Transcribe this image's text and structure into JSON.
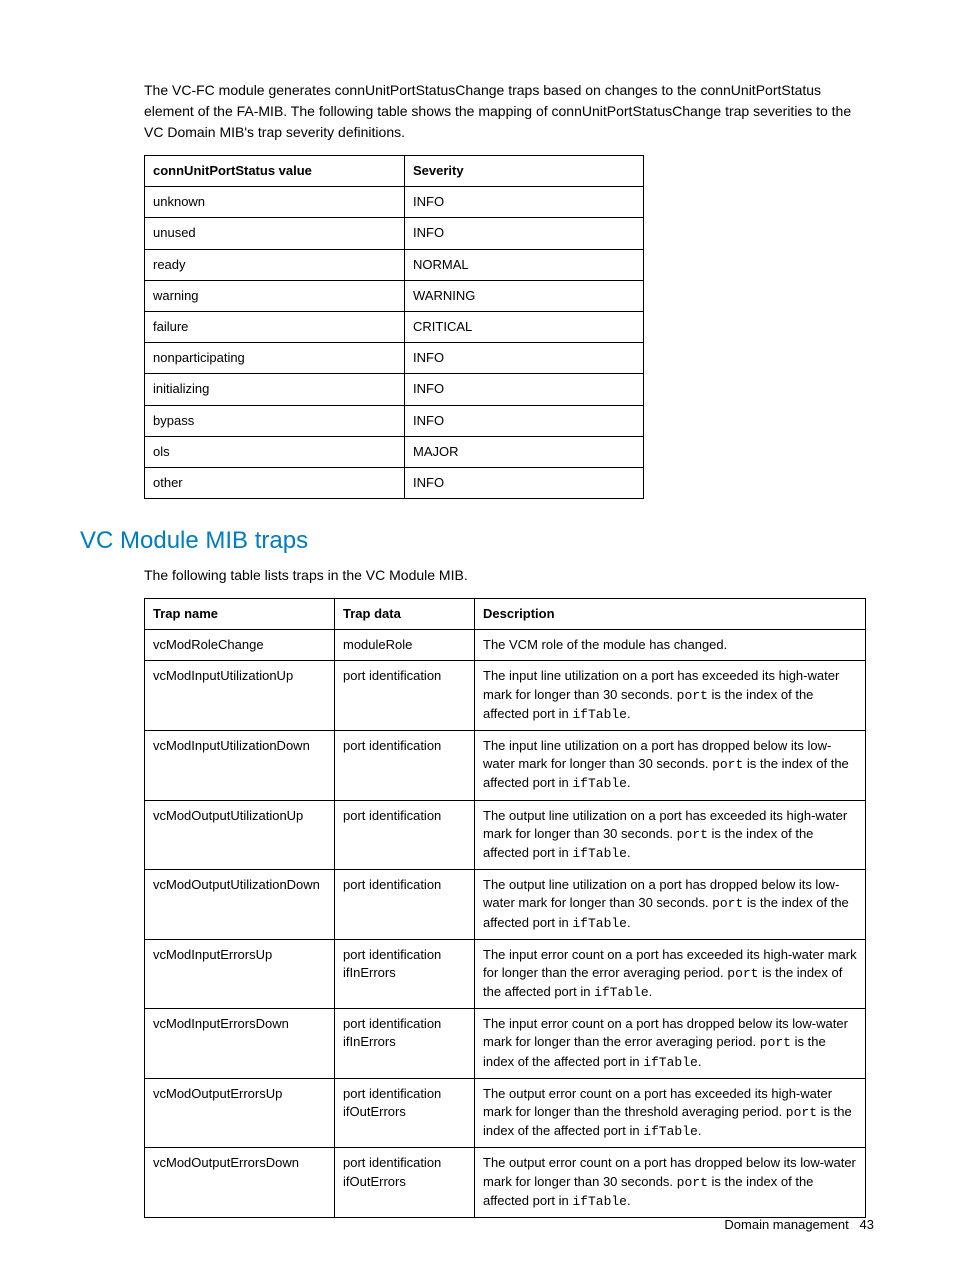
{
  "intro": "The VC-FC module generates connUnitPortStatusChange traps based on changes to the connUnitPortStatus element of the FA-MIB. The following table shows the mapping of connUnitPortStatusChange trap severities to the VC Domain MIB's trap severity definitions.",
  "severity_table": {
    "columns": [
      "connUnitPortStatus value",
      "Severity"
    ],
    "rows": [
      [
        "unknown",
        "INFO"
      ],
      [
        "unused",
        "INFO"
      ],
      [
        "ready",
        "NORMAL"
      ],
      [
        "warning",
        "WARNING"
      ],
      [
        "failure",
        "CRITICAL"
      ],
      [
        "nonparticipating",
        "INFO"
      ],
      [
        "initializing",
        "INFO"
      ],
      [
        "bypass",
        "INFO"
      ],
      [
        "ols",
        "MAJOR"
      ],
      [
        "other",
        "INFO"
      ]
    ]
  },
  "section_heading": "VC Module MIB traps",
  "subintro": "The following table lists traps in the VC Module MIB.",
  "traps_table": {
    "columns": [
      "Trap name",
      "Trap data",
      "Description"
    ],
    "rows": [
      {
        "name": "vcModRoleChange",
        "data": "moduleRole",
        "desc_parts": [
          {
            "t": "The VCM role of the module has changed."
          }
        ]
      },
      {
        "name": "vcModInputUtilizationUp",
        "data": "port identification",
        "desc_parts": [
          {
            "t": "The input line utilization on a port has exceeded its high-water mark for longer than 30 seconds. "
          },
          {
            "t": "port",
            "mono": true
          },
          {
            "t": " is the index of the affected port in "
          },
          {
            "t": "ifTable",
            "mono": true
          },
          {
            "t": "."
          }
        ]
      },
      {
        "name": "vcModInputUtilizationDown",
        "data": "port identification",
        "desc_parts": [
          {
            "t": "The input line utilization on a port has dropped below its low-water mark for longer than 30 seconds. "
          },
          {
            "t": "port",
            "mono": true
          },
          {
            "t": " is the index of the affected port in "
          },
          {
            "t": "ifTable",
            "mono": true
          },
          {
            "t": "."
          }
        ]
      },
      {
        "name": "vcModOutputUtilizationUp",
        "data": "port identification",
        "desc_parts": [
          {
            "t": "The output line utilization on a port has exceeded its high-water mark for longer than 30 seconds. "
          },
          {
            "t": "port",
            "mono": true
          },
          {
            "t": " is the index of the affected port in "
          },
          {
            "t": "ifTable",
            "mono": true
          },
          {
            "t": "."
          }
        ]
      },
      {
        "name": "vcModOutputUtilizationDown",
        "data": "port identification",
        "desc_parts": [
          {
            "t": "The output line utilization on a port has dropped below its low-water mark for longer than 30 seconds. "
          },
          {
            "t": "port",
            "mono": true
          },
          {
            "t": " is the index of the affected port in "
          },
          {
            "t": "ifTable",
            "mono": true
          },
          {
            "t": "."
          }
        ]
      },
      {
        "name": "vcModInputErrorsUp",
        "data": "port identification\nifInErrors",
        "desc_parts": [
          {
            "t": "The input error count on a port has exceeded its high-water mark for longer than the error averaging period. "
          },
          {
            "t": "port",
            "mono": true
          },
          {
            "t": " is the index of the affected port in "
          },
          {
            "t": "ifTable",
            "mono": true
          },
          {
            "t": "."
          }
        ]
      },
      {
        "name": "vcModInputErrorsDown",
        "data": "port identification\nifInErrors",
        "desc_parts": [
          {
            "t": "The input error count on a port has dropped below its low-water mark for longer than the error averaging period. "
          },
          {
            "t": "port",
            "mono": true
          },
          {
            "t": " is the index of the affected port in "
          },
          {
            "t": "ifTable",
            "mono": true
          },
          {
            "t": "."
          }
        ]
      },
      {
        "name": "vcModOutputErrorsUp",
        "data": "port identification\nifOutErrors",
        "desc_parts": [
          {
            "t": "The output error count on a port has exceeded its high-water mark for longer than the threshold averaging period. "
          },
          {
            "t": "port",
            "mono": true
          },
          {
            "t": " is the index of the affected port in "
          },
          {
            "t": "ifTable",
            "mono": true
          },
          {
            "t": "."
          }
        ]
      },
      {
        "name": "vcModOutputErrorsDown",
        "data": "port identification\nifOutErrors",
        "desc_parts": [
          {
            "t": "The output error count on a port has dropped below its low-water mark for longer than 30 seconds. "
          },
          {
            "t": "port",
            "mono": true
          },
          {
            "t": " is the index of the affected port in "
          },
          {
            "t": "ifTable",
            "mono": true
          },
          {
            "t": "."
          }
        ]
      }
    ]
  },
  "footer": {
    "section": "Domain management",
    "page": "43"
  }
}
